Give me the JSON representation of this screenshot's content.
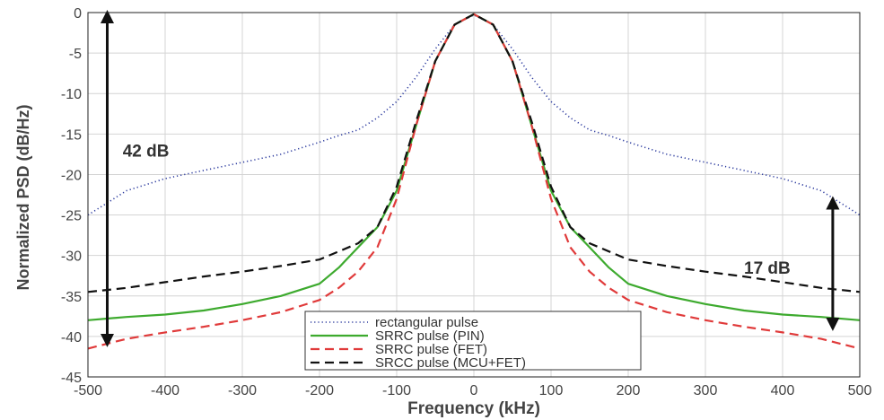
{
  "chart_data": {
    "type": "line",
    "title": "",
    "xlabel": "Frequency (kHz)",
    "ylabel": "Normalized PSD (dB/Hz)",
    "xlim": [
      -500,
      500
    ],
    "ylim": [
      -45,
      0
    ],
    "xticks": [
      -500,
      -400,
      -300,
      -200,
      -100,
      0,
      100,
      200,
      300,
      400,
      500
    ],
    "yticks": [
      0,
      -5,
      -10,
      -15,
      -20,
      -25,
      -30,
      -35,
      -40,
      -45
    ],
    "grid": true,
    "legend_position": "bottom-center",
    "x": [
      -500,
      -450,
      -400,
      -350,
      -300,
      -250,
      -200,
      -175,
      -150,
      -125,
      -100,
      -75,
      -50,
      -25,
      0,
      25,
      50,
      75,
      100,
      125,
      150,
      175,
      200,
      250,
      300,
      350,
      400,
      450,
      500
    ],
    "series": [
      {
        "name": "rectangular pulse",
        "color": "#2b3a9e",
        "dash": "dotted",
        "values": [
          -25,
          -22,
          -20.5,
          -19.5,
          -18.5,
          -17.5,
          -16,
          -15.2,
          -14.5,
          -13,
          -11,
          -8,
          -4.5,
          -1.5,
          -0.3,
          -1.5,
          -4.5,
          -8,
          -11,
          -13,
          -14.5,
          -15.2,
          -16,
          -17.5,
          -18.5,
          -19.5,
          -20.5,
          -22,
          -25
        ]
      },
      {
        "name": "SRRC pulse (PIN)",
        "color": "#3daa2e",
        "dash": "solid",
        "values": [
          -38,
          -37.6,
          -37.3,
          -36.8,
          -36,
          -35,
          -33.5,
          -31.5,
          -29,
          -26.5,
          -22,
          -14,
          -6,
          -1.5,
          -0.2,
          -1.5,
          -6,
          -14,
          -22,
          -26.5,
          -29,
          -31.5,
          -33.5,
          -35,
          -36,
          -36.8,
          -37.3,
          -37.6,
          -38
        ]
      },
      {
        "name": "SRRC pulse (FET)",
        "color": "#e03a3a",
        "dash": "dashed",
        "values": [
          -41.5,
          -40.3,
          -39.5,
          -38.8,
          -38,
          -37,
          -35.5,
          -34,
          -32,
          -29,
          -23,
          -14,
          -6,
          -1.5,
          -0.2,
          -1.5,
          -6,
          -14,
          -23,
          -29,
          -32,
          -34,
          -35.5,
          -37,
          -38,
          -38.8,
          -39.5,
          -40.3,
          -41.5
        ]
      },
      {
        "name": "SRCC pulse (MCU+FET)",
        "color": "#111111",
        "dash": "dashed",
        "values": [
          -34.5,
          -34,
          -33.3,
          -32.6,
          -32,
          -31.3,
          -30.5,
          -29.5,
          -28.5,
          -26.5,
          -21.5,
          -13.5,
          -6,
          -1.5,
          -0.2,
          -1.5,
          -6,
          -13.5,
          -21.5,
          -26.5,
          -28.5,
          -29.5,
          -30.5,
          -31.3,
          -32,
          -32.6,
          -33.3,
          -34,
          -34.5
        ]
      }
    ],
    "annotations": [
      {
        "text": "42 dB",
        "x": -475,
        "y_from": 0,
        "y_to": -41,
        "label_x": -455,
        "label_y": -17
      },
      {
        "text": "17 dB",
        "x": 465,
        "y_from": -23,
        "y_to": -39,
        "label_x": 350,
        "label_y": -31.5
      }
    ]
  }
}
